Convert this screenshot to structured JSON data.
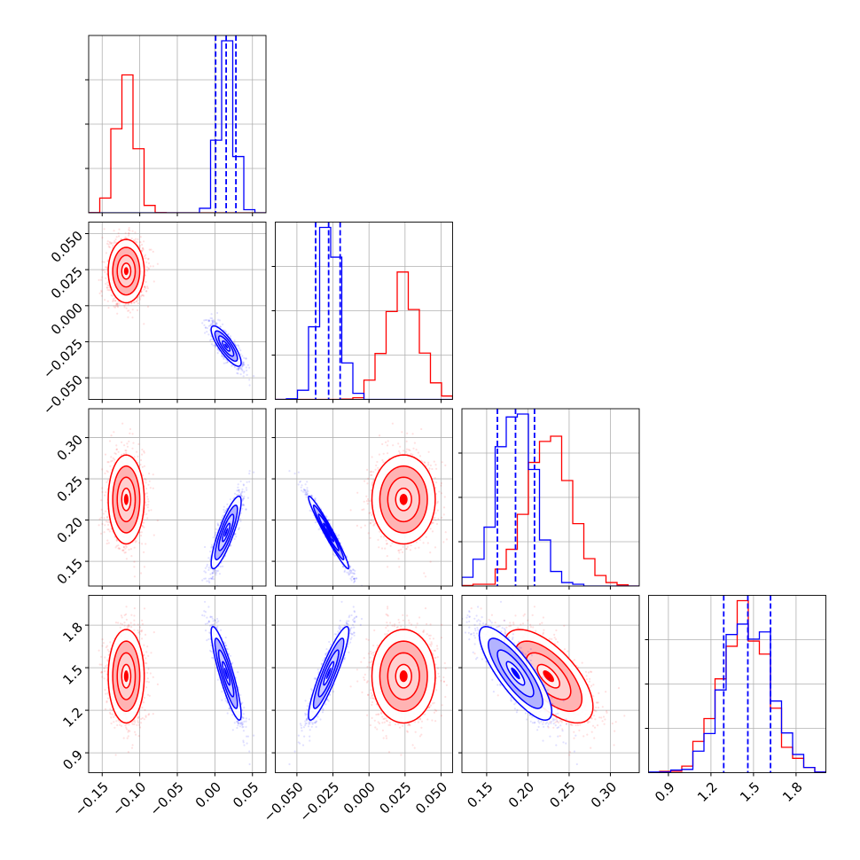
{
  "chart_data": {
    "type": "corner",
    "grid": true,
    "n_params": 4,
    "series": [
      {
        "name": "",
        "color": "#ff0000",
        "means": [
          -0.118,
          0.024,
          0.225,
          1.44
        ],
        "sds": [
          0.012,
          0.011,
          0.027,
          0.165
        ],
        "corr": [
          [
            1,
            0,
            0,
            0
          ],
          [
            0,
            1,
            0,
            0
          ],
          [
            0,
            0,
            1,
            -0.65
          ],
          [
            0,
            0,
            -0.65,
            1
          ]
        ]
      },
      {
        "name": "",
        "color": "#0000ff",
        "means": [
          0.015,
          -0.028,
          0.185,
          1.46
        ],
        "sds": [
          0.01,
          0.007,
          0.022,
          0.165
        ],
        "corr": [
          [
            1,
            -0.82,
            0.85,
            -0.88
          ],
          [
            -0.82,
            1,
            -0.97,
            0.9
          ],
          [
            0.85,
            -0.97,
            1,
            -0.82
          ],
          [
            -0.88,
            0.9,
            -0.82,
            1
          ]
        ]
      }
    ],
    "quantile_lines": [
      {
        "param": 0,
        "values": [
          0.001,
          0.015,
          0.028
        ],
        "color": "#0000ff"
      },
      {
        "param": 1,
        "values": [
          -0.037,
          -0.028,
          -0.02
        ],
        "color": "#0000ff"
      },
      {
        "param": 2,
        "values": [
          0.163,
          0.185,
          0.208
        ],
        "color": "#0000ff"
      },
      {
        "param": 3,
        "values": [
          1.29,
          1.46,
          1.62
        ],
        "color": "#0000ff"
      }
    ],
    "ranges": [
      [
        -0.168,
        0.068
      ],
      [
        -0.065,
        0.058
      ],
      [
        0.12,
        0.335
      ],
      [
        0.76,
        2.01
      ]
    ],
    "tick_values": [
      [
        -0.15,
        -0.1,
        -0.05,
        0.0,
        0.05
      ],
      [
        -0.05,
        -0.025,
        0.0,
        0.025,
        0.05
      ],
      [
        0.15,
        0.2,
        0.25,
        0.3
      ],
      [
        0.9,
        1.2,
        1.5,
        1.8
      ]
    ],
    "tick_labels": [
      [
        "−0.15",
        "−0.10",
        "−0.05",
        "0.00",
        "0.05"
      ],
      [
        "−0.050",
        "−0.025",
        "0.000",
        "0.025",
        "0.050"
      ],
      [
        "0.15",
        "0.20",
        "0.25",
        "0.30"
      ],
      [
        "0.9",
        "1.2",
        "1.5",
        "1.8"
      ]
    ],
    "diag_y_ticks": [
      0.25,
      0.5,
      0.75
    ]
  }
}
